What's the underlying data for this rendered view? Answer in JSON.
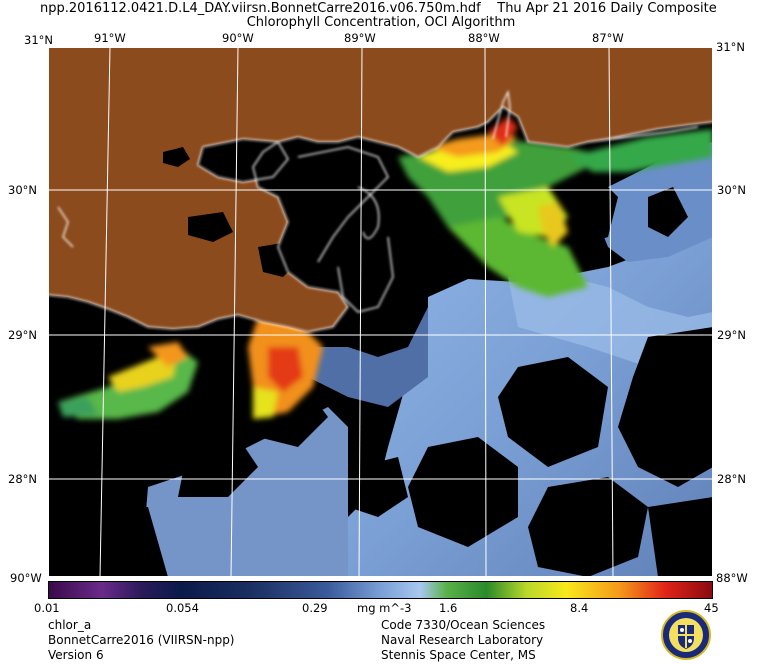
{
  "header": {
    "file_line": "npp.2016112.0421.D.L4_DAY.viirsn.BonnetCarre2016.v06.750m.hdf",
    "date_line": "Thu Apr 21 2016 Daily Composite",
    "subtitle": "Chlorophyll Concentration, OCI Algorithm"
  },
  "axes": {
    "lon_top": [
      "91°W",
      "90°W",
      "89°W",
      "88°W",
      "87°W"
    ],
    "lat_left": [
      "30°N",
      "29°N",
      "28°N"
    ],
    "lat_right": [
      "30°N",
      "29°N",
      "28°N"
    ],
    "corner_top_left": "31°N",
    "corner_top_right": "31°N",
    "corner_bottom_left": "90°W",
    "corner_bottom_right": "88°W"
  },
  "colorbar": {
    "ticks": [
      "0.01",
      "0.054",
      "0.29",
      "1.6",
      "8.4",
      "45"
    ],
    "units": "mg m^-3"
  },
  "footer": {
    "left": [
      "chlor_a",
      "BonnetCarre2016 (VIIRSN-npp)",
      "Version 6"
    ],
    "right": [
      "Code 7330/Ocean Sciences",
      "Naval Research Laboratory",
      "Stennis Space Center, MS"
    ]
  },
  "colors": {
    "land": "#8b4b1d",
    "nodata": "#000000",
    "ocean_low": "#6f93c8",
    "grid": "#ffffff"
  }
}
